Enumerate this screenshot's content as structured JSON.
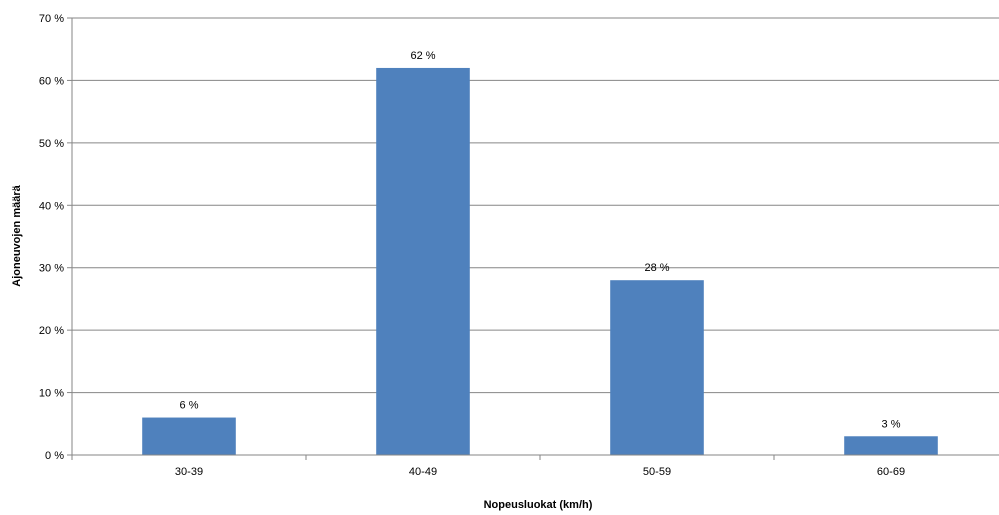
{
  "chart_data": {
    "type": "bar",
    "categories": [
      "30-39",
      "40-49",
      "50-59",
      "60-69"
    ],
    "values": [
      6,
      62,
      28,
      3
    ],
    "data_labels": [
      "6 %",
      "62 %",
      "28 %",
      "3 %"
    ],
    "ytick_labels": [
      "0 %",
      "10 %",
      "20 %",
      "30 %",
      "40 %",
      "50 %",
      "60 %",
      "70 %"
    ],
    "yticks": [
      0,
      10,
      20,
      30,
      40,
      50,
      60,
      70
    ],
    "ylim": [
      0,
      70
    ],
    "xlabel": "Nopeusluokat (km/h)",
    "ylabel": "Ajoneuvojen määrä",
    "grid": true,
    "legend": "none",
    "bar_color": "#4F81BD",
    "gridline_color": "#868686",
    "axis_color": "#868686"
  }
}
